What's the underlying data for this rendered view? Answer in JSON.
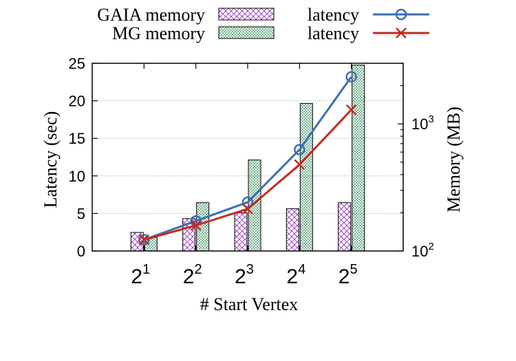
{
  "chart_data": {
    "type": "bar",
    "categories": [
      "2",
      "2",
      "2",
      "2",
      "2"
    ],
    "category_exponents": [
      "1",
      "2",
      "3",
      "4",
      "5"
    ],
    "xlabel": "# Start Vertex",
    "ylabel": "Latency (sec)",
    "y2label": "Memory (MB)",
    "ylim": [
      0,
      25
    ],
    "y_ticks": [
      "0",
      "5",
      "10",
      "15",
      "20",
      "25"
    ],
    "y2_scale": "log",
    "y2lim": [
      100,
      3000
    ],
    "y2_ticks": [
      {
        "base": "10",
        "exp": "2",
        "value": 100
      },
      {
        "base": "10",
        "exp": "3",
        "value": 1000
      }
    ],
    "bar_series": [
      {
        "name": "GAIA memory",
        "axis": "right",
        "pattern": "diagonal-cross",
        "color": "#9b30c8",
        "values": [
          140,
          180,
          200,
          215,
          240
        ]
      },
      {
        "name": "MG memory",
        "axis": "right",
        "pattern": "fine-cross",
        "color": "#2e8b57",
        "values": [
          128,
          240,
          520,
          1450,
          2900
        ]
      }
    ],
    "line_series": [
      {
        "name": "latency",
        "axis": "left",
        "marker": "circle",
        "color": "#3b6eb5",
        "values": [
          1.5,
          4.0,
          6.5,
          13.5,
          23.2
        ]
      },
      {
        "name": "latency",
        "axis": "left",
        "marker": "x",
        "color": "#c8281e",
        "values": [
          1.5,
          3.4,
          5.6,
          11.5,
          18.8
        ]
      }
    ],
    "grid": true,
    "legend_position": "top"
  }
}
